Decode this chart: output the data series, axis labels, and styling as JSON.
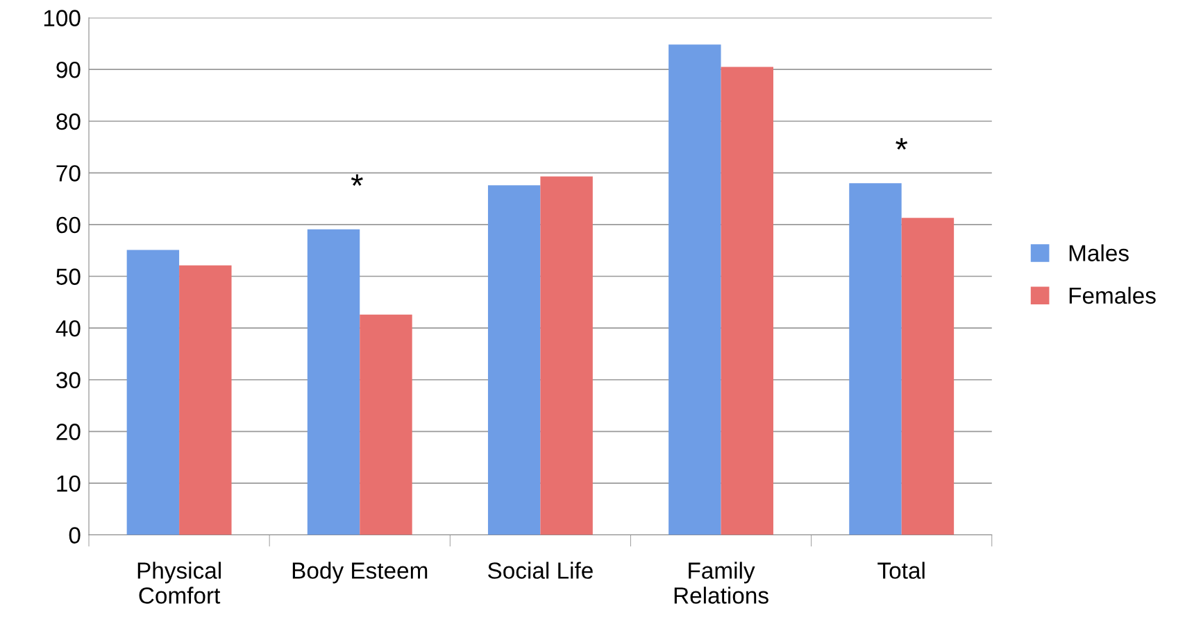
{
  "chart_data": {
    "type": "bar",
    "categories": [
      "Physical\nComfort",
      "Body Esteem",
      "Social Life",
      "Family\nRelations",
      "Total"
    ],
    "series": [
      {
        "name": "Males",
        "color": "#6e9de6",
        "values": [
          55.1,
          59.1,
          67.6,
          94.8,
          68.0
        ]
      },
      {
        "name": "Females",
        "color": "#e8706e",
        "values": [
          52.1,
          42.6,
          69.3,
          90.5,
          61.3
        ]
      }
    ],
    "ylim": [
      0,
      100
    ],
    "yticks": [
      0,
      10,
      20,
      30,
      40,
      50,
      60,
      70,
      80,
      90,
      100
    ],
    "grid": "y",
    "legend": "right",
    "annotations": [
      "*",
      "*"
    ]
  }
}
